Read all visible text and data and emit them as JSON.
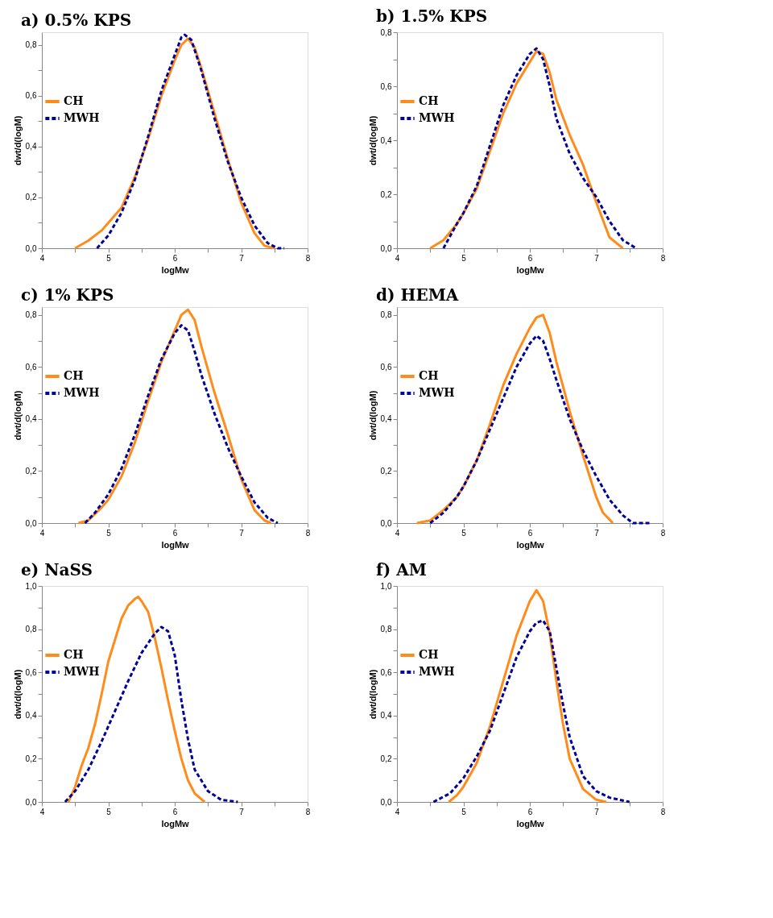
{
  "chart_data": [
    {
      "type": "line",
      "title": "a) 0.5% KPS",
      "xlabel": "logMw",
      "ylabel": "dwt/d(logM)",
      "legend": "top left",
      "marker": "none",
      "grid": false,
      "xlim": [
        4,
        8
      ],
      "xticks": [
        4,
        {
          "value": 4.5,
          "label": null
        },
        5,
        {
          "value": 5.5,
          "label": null
        },
        6,
        {
          "value": 6.5,
          "label": null
        },
        7,
        {
          "value": 7.5,
          "label": null
        },
        8
      ],
      "ylim": [
        0,
        0.85
      ],
      "yticks": [
        {
          "value": 0,
          "label": "0,0"
        },
        {
          "value": 0.1,
          "label": null
        },
        {
          "value": 0.2,
          "label": "0,2"
        },
        {
          "value": 0.3,
          "label": null
        },
        {
          "value": 0.4,
          "label": "0,4"
        },
        {
          "value": 0.5,
          "label": null
        },
        {
          "value": 0.6,
          "label": "0,6"
        },
        {
          "value": 0.7,
          "label": null
        },
        {
          "value": 0.8,
          "label": "0,8"
        }
      ],
      "series": [
        {
          "name": "CH",
          "color": "#ff8c1a",
          "line_style": "solid",
          "x": [
            4.5,
            4.7,
            4.9,
            5.0,
            5.2,
            5.4,
            5.6,
            5.8,
            6.0,
            6.1,
            6.2,
            6.3,
            6.4,
            6.6,
            6.8,
            7.0,
            7.2,
            7.35,
            7.5
          ],
          "values": [
            0,
            0.03,
            0.07,
            0.1,
            0.16,
            0.28,
            0.43,
            0.6,
            0.74,
            0.8,
            0.825,
            0.79,
            0.71,
            0.53,
            0.35,
            0.18,
            0.06,
            0.01,
            0
          ]
        },
        {
          "name": "MWH",
          "color": "#00009a",
          "line_style": "dashed",
          "x": [
            4.83,
            5.0,
            5.2,
            5.4,
            5.6,
            5.8,
            6.0,
            6.1,
            6.15,
            6.25,
            6.4,
            6.6,
            6.8,
            7.0,
            7.2,
            7.4,
            7.55,
            7.65
          ],
          "values": [
            0,
            0.05,
            0.14,
            0.27,
            0.44,
            0.62,
            0.76,
            0.83,
            0.84,
            0.82,
            0.7,
            0.51,
            0.34,
            0.2,
            0.09,
            0.02,
            0,
            0
          ]
        }
      ]
    },
    {
      "type": "line",
      "title": "b) 1.5% KPS",
      "xlabel": "logMw",
      "ylabel": "dwt/d(logM)",
      "legend": "top left",
      "marker": "none",
      "grid": false,
      "xlim": [
        4,
        8
      ],
      "xticks": [
        4,
        {
          "value": 4.5,
          "label": null
        },
        5,
        {
          "value": 5.5,
          "label": null
        },
        6,
        {
          "value": 6.5,
          "label": null
        },
        7,
        {
          "value": 7.5,
          "label": null
        },
        8
      ],
      "ylim": [
        0,
        0.8
      ],
      "yticks": [
        {
          "value": 0,
          "label": "0,0"
        },
        {
          "value": 0.1,
          "label": null
        },
        {
          "value": 0.2,
          "label": "0,2"
        },
        {
          "value": 0.3,
          "label": null
        },
        {
          "value": 0.4,
          "label": "0,4"
        },
        {
          "value": 0.5,
          "label": null
        },
        {
          "value": 0.6,
          "label": "0,6"
        },
        {
          "value": 0.7,
          "label": null
        },
        {
          "value": 0.8,
          "label": "0,8"
        }
      ],
      "series": [
        {
          "name": "CH",
          "color": "#ff8c1a",
          "line_style": "solid",
          "x": [
            4.5,
            4.7,
            4.9,
            5.0,
            5.2,
            5.4,
            5.6,
            5.8,
            6.0,
            6.1,
            6.2,
            6.3,
            6.4,
            6.6,
            6.8,
            7.0,
            7.2,
            7.4
          ],
          "values": [
            0,
            0.03,
            0.09,
            0.13,
            0.22,
            0.36,
            0.5,
            0.61,
            0.69,
            0.73,
            0.72,
            0.65,
            0.55,
            0.42,
            0.31,
            0.17,
            0.04,
            0
          ]
        },
        {
          "name": "MWH",
          "color": "#00009a",
          "line_style": "dashed",
          "x": [
            4.7,
            4.9,
            5.0,
            5.2,
            5.4,
            5.6,
            5.8,
            6.0,
            6.1,
            6.2,
            6.3,
            6.4,
            6.6,
            6.8,
            7.0,
            7.2,
            7.4,
            7.6
          ],
          "values": [
            0,
            0.09,
            0.13,
            0.23,
            0.38,
            0.53,
            0.64,
            0.72,
            0.74,
            0.7,
            0.6,
            0.48,
            0.35,
            0.26,
            0.19,
            0.1,
            0.03,
            0
          ]
        }
      ]
    },
    {
      "type": "line",
      "title": "c) 1% KPS",
      "xlabel": "logMw",
      "ylabel": "dwt/d(logM)",
      "legend": "top left",
      "marker": "none",
      "grid": false,
      "xlim": [
        4,
        8
      ],
      "xticks": [
        4,
        {
          "value": 4.5,
          "label": null
        },
        5,
        {
          "value": 5.5,
          "label": null
        },
        6,
        {
          "value": 6.5,
          "label": null
        },
        7,
        {
          "value": 7.5,
          "label": null
        },
        8
      ],
      "ylim": [
        0,
        0.83
      ],
      "yticks": [
        {
          "value": 0,
          "label": "0,0"
        },
        {
          "value": 0.1,
          "label": null
        },
        {
          "value": 0.2,
          "label": "0,2"
        },
        {
          "value": 0.3,
          "label": null
        },
        {
          "value": 0.4,
          "label": "0,4"
        },
        {
          "value": 0.5,
          "label": null
        },
        {
          "value": 0.6,
          "label": "0,6"
        },
        {
          "value": 0.7,
          "label": null
        },
        {
          "value": 0.8,
          "label": "0,8"
        }
      ],
      "series": [
        {
          "name": "CH",
          "color": "#ff8c1a",
          "line_style": "solid",
          "x": [
            4.55,
            4.7,
            4.9,
            5.0,
            5.2,
            5.4,
            5.6,
            5.8,
            6.0,
            6.1,
            6.2,
            6.3,
            6.4,
            6.6,
            6.8,
            7.0,
            7.2,
            7.35,
            7.45
          ],
          "values": [
            0,
            0.01,
            0.06,
            0.09,
            0.18,
            0.31,
            0.47,
            0.62,
            0.74,
            0.8,
            0.82,
            0.78,
            0.68,
            0.5,
            0.34,
            0.17,
            0.05,
            0.01,
            0
          ]
        },
        {
          "name": "MWH",
          "color": "#00009a",
          "line_style": "dashed",
          "x": [
            4.65,
            4.8,
            5.0,
            5.2,
            5.4,
            5.6,
            5.8,
            6.0,
            6.1,
            6.2,
            6.3,
            6.4,
            6.6,
            6.8,
            7.0,
            7.2,
            7.4,
            7.55
          ],
          "values": [
            0,
            0.04,
            0.11,
            0.21,
            0.34,
            0.49,
            0.63,
            0.73,
            0.76,
            0.74,
            0.66,
            0.57,
            0.42,
            0.29,
            0.18,
            0.08,
            0.02,
            0
          ]
        }
      ]
    },
    {
      "type": "line",
      "title": "d) HEMA",
      "xlabel": "logMw",
      "ylabel": "dwt/d(logM)",
      "legend": "top left",
      "marker": "none",
      "grid": false,
      "xlim": [
        4,
        8
      ],
      "xticks": [
        4,
        {
          "value": 4.5,
          "label": null
        },
        5,
        {
          "value": 5.5,
          "label": null
        },
        6,
        {
          "value": 6.5,
          "label": null
        },
        7,
        {
          "value": 7.5,
          "label": null
        },
        8
      ],
      "ylim": [
        0,
        0.83
      ],
      "yticks": [
        {
          "value": 0,
          "label": "0,0"
        },
        {
          "value": 0.1,
          "label": null
        },
        {
          "value": 0.2,
          "label": "0,2"
        },
        {
          "value": 0.3,
          "label": null
        },
        {
          "value": 0.4,
          "label": "0,4"
        },
        {
          "value": 0.5,
          "label": null
        },
        {
          "value": 0.6,
          "label": "0,6"
        },
        {
          "value": 0.7,
          "label": null
        },
        {
          "value": 0.8,
          "label": "0,8"
        }
      ],
      "series": [
        {
          "name": "CH",
          "color": "#ff8c1a",
          "line_style": "solid",
          "x": [
            4.3,
            4.5,
            4.7,
            4.9,
            5.0,
            5.2,
            5.4,
            5.6,
            5.8,
            6.0,
            6.1,
            6.2,
            6.3,
            6.4,
            6.6,
            6.8,
            7.0,
            7.1,
            7.25
          ],
          "values": [
            0,
            0.01,
            0.05,
            0.1,
            0.14,
            0.24,
            0.38,
            0.53,
            0.65,
            0.75,
            0.79,
            0.8,
            0.73,
            0.62,
            0.43,
            0.26,
            0.1,
            0.04,
            0
          ]
        },
        {
          "name": "MWH",
          "color": "#00009a",
          "line_style": "dashed",
          "x": [
            4.5,
            4.7,
            4.9,
            5.0,
            5.2,
            5.4,
            5.6,
            5.8,
            6.0,
            6.1,
            6.2,
            6.3,
            6.4,
            6.6,
            6.8,
            7.0,
            7.2,
            7.4,
            7.55,
            7.8
          ],
          "values": [
            0,
            0.04,
            0.1,
            0.14,
            0.24,
            0.36,
            0.48,
            0.6,
            0.69,
            0.72,
            0.7,
            0.63,
            0.55,
            0.4,
            0.28,
            0.18,
            0.09,
            0.03,
            0,
            0
          ]
        }
      ]
    },
    {
      "type": "line",
      "title": "e) NaSS",
      "xlabel": "logMw",
      "ylabel": "dwt/d(logM)",
      "legend": "top left",
      "marker": "none",
      "grid": false,
      "xlim": [
        4,
        8
      ],
      "xticks": [
        4,
        {
          "value": 4.5,
          "label": null
        },
        5,
        {
          "value": 5.5,
          "label": null
        },
        6,
        {
          "value": 6.5,
          "label": null
        },
        7,
        {
          "value": 7.5,
          "label": null
        },
        8
      ],
      "ylim": [
        0,
        1.0
      ],
      "yticks": [
        {
          "value": 0,
          "label": "0,0"
        },
        {
          "value": 0.1,
          "label": null
        },
        {
          "value": 0.2,
          "label": "0,2"
        },
        {
          "value": 0.3,
          "label": null
        },
        {
          "value": 0.4,
          "label": "0,4"
        },
        {
          "value": 0.5,
          "label": null
        },
        {
          "value": 0.6,
          "label": "0,6"
        },
        {
          "value": 0.7,
          "label": null
        },
        {
          "value": 0.8,
          "label": "0,8"
        },
        {
          "value": 0.9,
          "label": null
        },
        {
          "value": 1.0,
          "label": "1,0"
        }
      ],
      "series": [
        {
          "name": "CH",
          "color": "#ff8c1a",
          "line_style": "solid",
          "x": [
            4.4,
            4.5,
            4.6,
            4.7,
            4.8,
            4.9,
            5.0,
            5.1,
            5.2,
            5.3,
            5.4,
            5.45,
            5.5,
            5.6,
            5.7,
            5.8,
            5.9,
            6.0,
            6.1,
            6.2,
            6.3,
            6.45
          ],
          "values": [
            0,
            0.07,
            0.17,
            0.25,
            0.36,
            0.5,
            0.65,
            0.75,
            0.85,
            0.91,
            0.94,
            0.95,
            0.93,
            0.88,
            0.76,
            0.62,
            0.47,
            0.33,
            0.2,
            0.1,
            0.04,
            0
          ]
        },
        {
          "name": "MWH",
          "color": "#00009a",
          "line_style": "dashed",
          "x": [
            4.35,
            4.5,
            4.7,
            4.9,
            5.1,
            5.3,
            5.5,
            5.7,
            5.8,
            5.9,
            6.0,
            6.1,
            6.2,
            6.3,
            6.5,
            6.7,
            6.95
          ],
          "values": [
            0,
            0.05,
            0.15,
            0.28,
            0.42,
            0.56,
            0.69,
            0.78,
            0.81,
            0.79,
            0.68,
            0.47,
            0.29,
            0.15,
            0.05,
            0.01,
            0
          ]
        }
      ]
    },
    {
      "type": "line",
      "title": "f) AM",
      "xlabel": "logMw",
      "ylabel": "dwt/d(logM)",
      "legend": "top left",
      "marker": "none",
      "grid": false,
      "xlim": [
        4,
        8
      ],
      "xticks": [
        4,
        {
          "value": 4.5,
          "label": null
        },
        5,
        {
          "value": 5.5,
          "label": null
        },
        6,
        {
          "value": 6.5,
          "label": null
        },
        7,
        {
          "value": 7.5,
          "label": null
        },
        8
      ],
      "ylim": [
        0,
        1.0
      ],
      "yticks": [
        {
          "value": 0,
          "label": "0,0"
        },
        {
          "value": 0.1,
          "label": null
        },
        {
          "value": 0.2,
          "label": "0,2"
        },
        {
          "value": 0.3,
          "label": null
        },
        {
          "value": 0.4,
          "label": "0,4"
        },
        {
          "value": 0.5,
          "label": null
        },
        {
          "value": 0.6,
          "label": "0,6"
        },
        {
          "value": 0.7,
          "label": null
        },
        {
          "value": 0.8,
          "label": "0,8"
        },
        {
          "value": 0.9,
          "label": null
        },
        {
          "value": 1.0,
          "label": "1,0"
        }
      ],
      "series": [
        {
          "name": "CH",
          "color": "#ff8c1a",
          "line_style": "solid",
          "x": [
            4.78,
            4.9,
            5.0,
            5.2,
            5.4,
            5.6,
            5.8,
            6.0,
            6.1,
            6.2,
            6.3,
            6.4,
            6.5,
            6.6,
            6.8,
            7.0,
            7.15
          ],
          "values": [
            0,
            0.03,
            0.07,
            0.18,
            0.35,
            0.56,
            0.77,
            0.93,
            0.98,
            0.93,
            0.78,
            0.56,
            0.36,
            0.2,
            0.06,
            0.01,
            0
          ]
        },
        {
          "name": "MWH",
          "color": "#00009a",
          "line_style": "dashed",
          "x": [
            4.55,
            4.8,
            5.0,
            5.2,
            5.4,
            5.6,
            5.8,
            6.0,
            6.1,
            6.2,
            6.3,
            6.4,
            6.5,
            6.6,
            6.8,
            7.0,
            7.2,
            7.5
          ],
          "values": [
            0,
            0.04,
            0.11,
            0.21,
            0.33,
            0.5,
            0.67,
            0.79,
            0.83,
            0.84,
            0.79,
            0.62,
            0.45,
            0.3,
            0.12,
            0.05,
            0.02,
            0
          ]
        }
      ]
    }
  ]
}
